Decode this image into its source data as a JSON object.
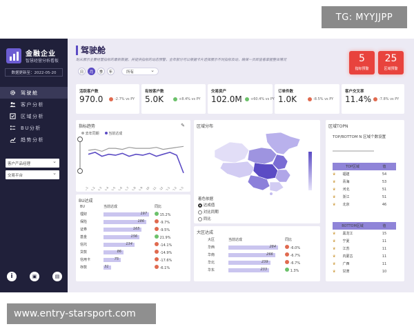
{
  "watermarks": {
    "top": "TG: MYYJJPP",
    "bottom": "www.entry-starsport.com"
  },
  "sidebar": {
    "brand": "金融企业",
    "brand_sub": "智慧经营分析看板",
    "update_text": "数据更新至：2022-05-20",
    "nav": [
      {
        "label": "驾驶舱",
        "icon": "gear-icon",
        "active": true
      },
      {
        "label": "客户分析",
        "icon": "users-icon",
        "active": false
      },
      {
        "label": "区域分析",
        "icon": "checkbox-icon",
        "active": false
      },
      {
        "label": "BU分析",
        "icon": "list-icon",
        "active": false
      },
      {
        "label": "趋势分析",
        "icon": "trend-icon",
        "active": false
      }
    ],
    "selects": [
      {
        "label": "客户产品经理"
      },
      {
        "label": "交易平台"
      }
    ],
    "bottom_icons": [
      "info-icon",
      "save-icon",
      "bookmark-icon"
    ]
  },
  "header": {
    "title": "驾驶舱",
    "desc": "助从展示主要经营指标的最新数据，并提供指标的动态预警，全年部分可以根据卡片选择展示不同指标及动，确保一页即查看掌握整体情况",
    "periods": [
      "日",
      "月",
      "季",
      "年"
    ],
    "active_period": 1,
    "period_all": "所有"
  },
  "alerts": [
    {
      "value": "5",
      "label": "指标预警"
    },
    {
      "value": "25",
      "label": "区域预警"
    }
  ],
  "kpis": [
    {
      "label": "活跃客户数",
      "value": "970.0",
      "delta": "-2.7% vs PY",
      "status": "red"
    },
    {
      "label": "有效客户数",
      "value": "5.0K",
      "delta": "+8.4% vs PY",
      "status": "green"
    },
    {
      "label": "交易资产",
      "value": "102.0M",
      "delta": "+60.4% vs PY",
      "status": "green"
    },
    {
      "label": "订单件数",
      "value": "1.0K",
      "delta": "-8.5% vs PY",
      "status": "red"
    },
    {
      "label": "客户交叉率",
      "value": "11.4%",
      "delta": "-7.8% vs PY",
      "status": "red"
    }
  ],
  "trend_panel": {
    "title": "指标趋势",
    "legend": [
      "去年同期",
      "当前达成"
    ],
    "chart_data": {
      "type": "line",
      "x": [
        "2021-1",
        "2021-2",
        "2021-3",
        "2021-4",
        "2021-5",
        "2021-6",
        "2021-7",
        "2021-8",
        "2021-9",
        "2021-10",
        "2021-11",
        "2021-12",
        "2022-1",
        "2022-2",
        "2022-3"
      ],
      "series": [
        {
          "name": "去年同期",
          "values": [
            48,
            49,
            47,
            50,
            50,
            49,
            51,
            50,
            50,
            50,
            51,
            49,
            50,
            51,
            52
          ]
        },
        {
          "name": "当前达成",
          "values": [
            44,
            46,
            42,
            44,
            43,
            45,
            42,
            44,
            43,
            45,
            42,
            44,
            46,
            43,
            25
          ]
        }
      ]
    }
  },
  "bu_panel": {
    "title": "BU达成",
    "headers": [
      "BU",
      "当前达成",
      "同比"
    ],
    "rows": [
      {
        "name": "理财",
        "value": "197",
        "bar": 1.0,
        "yoy": "15.2%",
        "status": "green"
      },
      {
        "name": "保险",
        "value": "186",
        "bar": 0.94,
        "yoy": "-9.7%",
        "status": "red"
      },
      {
        "name": "证券",
        "value": "165",
        "bar": 0.84,
        "yoy": "-9.5%",
        "status": "red"
      },
      {
        "name": "基金",
        "value": "156",
        "bar": 0.79,
        "yoy": "21.9%",
        "status": "green"
      },
      {
        "name": "信托",
        "value": "134",
        "bar": 0.68,
        "yoy": "-14.1%",
        "status": "red"
      },
      {
        "name": "贷款",
        "value": "86",
        "bar": 0.44,
        "yoy": "-14.9%",
        "status": "red"
      },
      {
        "name": "信用卡",
        "value": "75",
        "bar": 0.38,
        "yoy": "-17.6%",
        "status": "red"
      },
      {
        "name": "存款",
        "value": "31",
        "bar": 0.16,
        "yoy": "-6.1%",
        "status": "red"
      }
    ]
  },
  "map_panel": {
    "title": "区域分布",
    "legend_title": "着色依据",
    "options": [
      "达成值",
      "对比同期",
      "同比"
    ],
    "selected": 0
  },
  "region_panel": {
    "title": "大区达成",
    "headers": [
      "大区",
      "当前达成",
      "同比"
    ],
    "rows": [
      {
        "name": "华西",
        "value": "284",
        "bar": 1.0,
        "yoy": "-6.0%",
        "status": "red"
      },
      {
        "name": "华南",
        "value": "266",
        "bar": 0.94,
        "yoy": "-6.7%",
        "status": "red"
      },
      {
        "name": "华北",
        "value": "239",
        "bar": 0.84,
        "yoy": "-6.7%",
        "status": "red"
      },
      {
        "name": "华东",
        "value": "233",
        "bar": 0.82,
        "yoy": "1.3%",
        "status": "green"
      }
    ]
  },
  "top_panel": {
    "title": "区域TOPN",
    "subtitle": "TOP/BOTTOM N 区域个数设置",
    "top_header": [
      "TOP区域",
      "值"
    ],
    "top_rows": [
      {
        "name": "福建",
        "value": "54"
      },
      {
        "name": "青海",
        "value": "53"
      },
      {
        "name": "河北",
        "value": "51"
      },
      {
        "name": "浙江",
        "value": "51"
      },
      {
        "name": "北京",
        "value": "46"
      }
    ],
    "bottom_header": [
      "BOTTOM区域",
      "值"
    ],
    "bottom_rows": [
      {
        "name": "黑龙江",
        "value": "15"
      },
      {
        "name": "宁夏",
        "value": "11"
      },
      {
        "name": "江苏",
        "value": "11"
      },
      {
        "name": "内蒙古",
        "value": "11"
      },
      {
        "name": "广西",
        "value": "11"
      },
      {
        "name": "甘肃",
        "value": "10"
      }
    ]
  }
}
